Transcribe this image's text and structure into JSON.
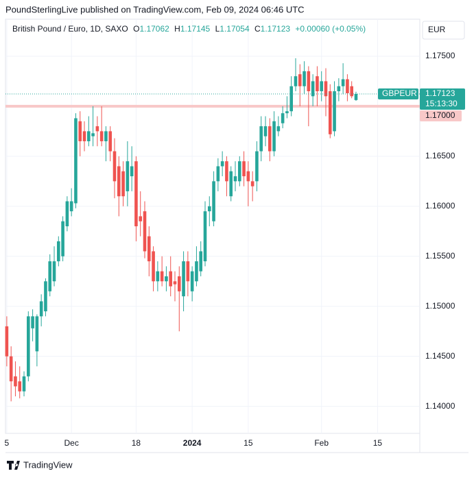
{
  "header": "PoundSterlingLive published on TradingView.com, Feb 09, 2024 06:46 UTC",
  "footer": "TradingView",
  "chart_data": {
    "type": "candlestick",
    "symbol": "British Pound / Euro, 1D, SAXO",
    "currency": "EUR",
    "ohlc_legend": {
      "open_label": "O",
      "open": "1.17062",
      "high_label": "H",
      "high": "1.17145",
      "low_label": "L",
      "low": "1.17054",
      "close_label": "C",
      "close": "1.17123",
      "change": "+0.00060 (+0.05%)"
    },
    "open": [
      1.148,
      1.145,
      1.143,
      1.1425,
      1.1415,
      1.143,
      1.1478,
      1.1455,
      1.149,
      1.1495,
      1.1515,
      1.1525,
      1.1545,
      1.155,
      1.158,
      1.1595,
      1.1603,
      1.1685,
      1.1675,
      1.1665,
      1.167,
      1.168,
      1.1675,
      1.1665,
      1.1675,
      1.1655,
      1.164,
      1.1635,
      1.1615,
      1.163,
      1.1645,
      1.159,
      1.1595,
      1.157,
      1.1555,
      1.1525,
      1.1535,
      1.1525,
      1.1535,
      1.1525,
      1.153,
      1.151,
      1.1545,
      1.1515,
      1.1525,
      1.1535,
      1.1545,
      1.1595,
      1.1585,
      1.1625,
      1.164,
      1.1645,
      1.161,
      1.1625,
      1.1625,
      1.1645,
      1.1635,
      1.1625,
      1.1625,
      1.1655,
      1.167,
      1.168,
      1.1655,
      1.1675,
      1.1683,
      1.1693,
      1.1695,
      1.172,
      1.1732,
      1.172,
      1.1735,
      1.171,
      1.173,
      1.1715,
      1.1725,
      1.1715,
      1.1675,
      1.1715,
      1.172,
      1.1727,
      1.172,
      1.17062
    ],
    "high": [
      1.149,
      1.146,
      1.1445,
      1.144,
      1.1435,
      1.1495,
      1.1497,
      1.1492,
      1.1512,
      1.1528,
      1.1552,
      1.156,
      1.157,
      1.159,
      1.161,
      1.1618,
      1.1693,
      1.1695,
      1.1685,
      1.169,
      1.17,
      1.169,
      1.17,
      1.168,
      1.168,
      1.1668,
      1.165,
      1.1645,
      1.1665,
      1.166,
      1.165,
      1.1615,
      1.1605,
      1.158,
      1.156,
      1.1545,
      1.155,
      1.154,
      1.155,
      1.1535,
      1.154,
      1.1555,
      1.1555,
      1.154,
      1.156,
      1.1565,
      1.1605,
      1.161,
      1.1635,
      1.1648,
      1.1655,
      1.165,
      1.164,
      1.1645,
      1.165,
      1.1655,
      1.1645,
      1.1635,
      1.1665,
      1.169,
      1.169,
      1.1688,
      1.1695,
      1.169,
      1.17,
      1.171,
      1.173,
      1.1748,
      1.1742,
      1.1745,
      1.174,
      1.1732,
      1.174,
      1.1735,
      1.1738,
      1.1722,
      1.1725,
      1.1728,
      1.1743,
      1.1732,
      1.1725,
      1.17145
    ],
    "low": [
      1.144,
      1.1405,
      1.141,
      1.1408,
      1.141,
      1.1425,
      1.1465,
      1.144,
      1.148,
      1.149,
      1.151,
      1.152,
      1.154,
      1.1545,
      1.1575,
      1.159,
      1.1598,
      1.165,
      1.1655,
      1.166,
      1.166,
      1.166,
      1.166,
      1.1645,
      1.1645,
      1.1608,
      1.159,
      1.16,
      1.16,
      1.1615,
      1.1565,
      1.157,
      1.1548,
      1.153,
      1.1515,
      1.1515,
      1.152,
      1.1515,
      1.151,
      1.1505,
      1.1475,
      1.1495,
      1.151,
      1.1505,
      1.152,
      1.153,
      1.154,
      1.158,
      1.158,
      1.1615,
      1.163,
      1.161,
      1.1605,
      1.1615,
      1.162,
      1.162,
      1.16,
      1.1605,
      1.1615,
      1.1645,
      1.166,
      1.1645,
      1.165,
      1.167,
      1.1678,
      1.1688,
      1.169,
      1.1715,
      1.17,
      1.1712,
      1.168,
      1.17,
      1.17,
      1.1705,
      1.169,
      1.1668,
      1.167,
      1.1705,
      1.1712,
      1.1705,
      1.1708,
      1.17054
    ],
    "close": [
      1.145,
      1.1425,
      1.142,
      1.1415,
      1.143,
      1.149,
      1.149,
      1.149,
      1.1505,
      1.1525,
      1.1545,
      1.1545,
      1.1565,
      1.1585,
      1.1605,
      1.1605,
      1.1688,
      1.1665,
      1.1665,
      1.1675,
      1.1673,
      1.1675,
      1.1665,
      1.1675,
      1.1655,
      1.1625,
      1.161,
      1.161,
      1.1645,
      1.164,
      1.158,
      1.1585,
      1.1555,
      1.1545,
      1.1525,
      1.1535,
      1.1525,
      1.153,
      1.152,
      1.1522,
      1.1515,
      1.1545,
      1.1525,
      1.1535,
      1.1545,
      1.1555,
      1.1595,
      1.16,
      1.1625,
      1.164,
      1.1645,
      1.1625,
      1.1635,
      1.163,
      1.1645,
      1.163,
      1.1625,
      1.162,
      1.1655,
      1.168,
      1.168,
      1.1655,
      1.1685,
      1.168,
      1.1693,
      1.1695,
      1.172,
      1.173,
      1.172,
      1.1735,
      1.1715,
      1.1725,
      1.1715,
      1.1725,
      1.171,
      1.1672,
      1.1715,
      1.172,
      1.1727,
      1.1713,
      1.171,
      1.17123
    ],
    "up_color": "#26a69a",
    "down_color": "#ef5350",
    "last_price": {
      "name": "GBPEUR",
      "value": 1.17123,
      "label": "1.17123",
      "countdown": "15:13:30"
    },
    "hline": {
      "value": 1.17,
      "label": "1.17000",
      "color": "#f8c8c8"
    },
    "ylim": [
      1.1373,
      1.1787
    ],
    "yticks": [
      {
        "value": 1.14,
        "label": "1.14000"
      },
      {
        "value": 1.145,
        "label": "1.14500"
      },
      {
        "value": 1.15,
        "label": "1.15000"
      },
      {
        "value": 1.155,
        "label": "1.15500"
      },
      {
        "value": 1.16,
        "label": "1.16000"
      },
      {
        "value": 1.165,
        "label": "1.16500"
      },
      {
        "value": 1.17,
        "label": "1.17000"
      },
      {
        "value": 1.175,
        "label": "1.17500"
      }
    ],
    "xlim": [
      -0.3,
      95.8
    ],
    "xticks": [
      {
        "value": 0,
        "label": "5"
      },
      {
        "value": 15,
        "label": "Dec"
      },
      {
        "value": 30,
        "label": "18"
      },
      {
        "value": 43,
        "label": "2024"
      },
      {
        "value": 56,
        "label": "15"
      },
      {
        "value": 73,
        "label": "Feb"
      },
      {
        "value": 86,
        "label": "15"
      }
    ],
    "grid": true
  }
}
